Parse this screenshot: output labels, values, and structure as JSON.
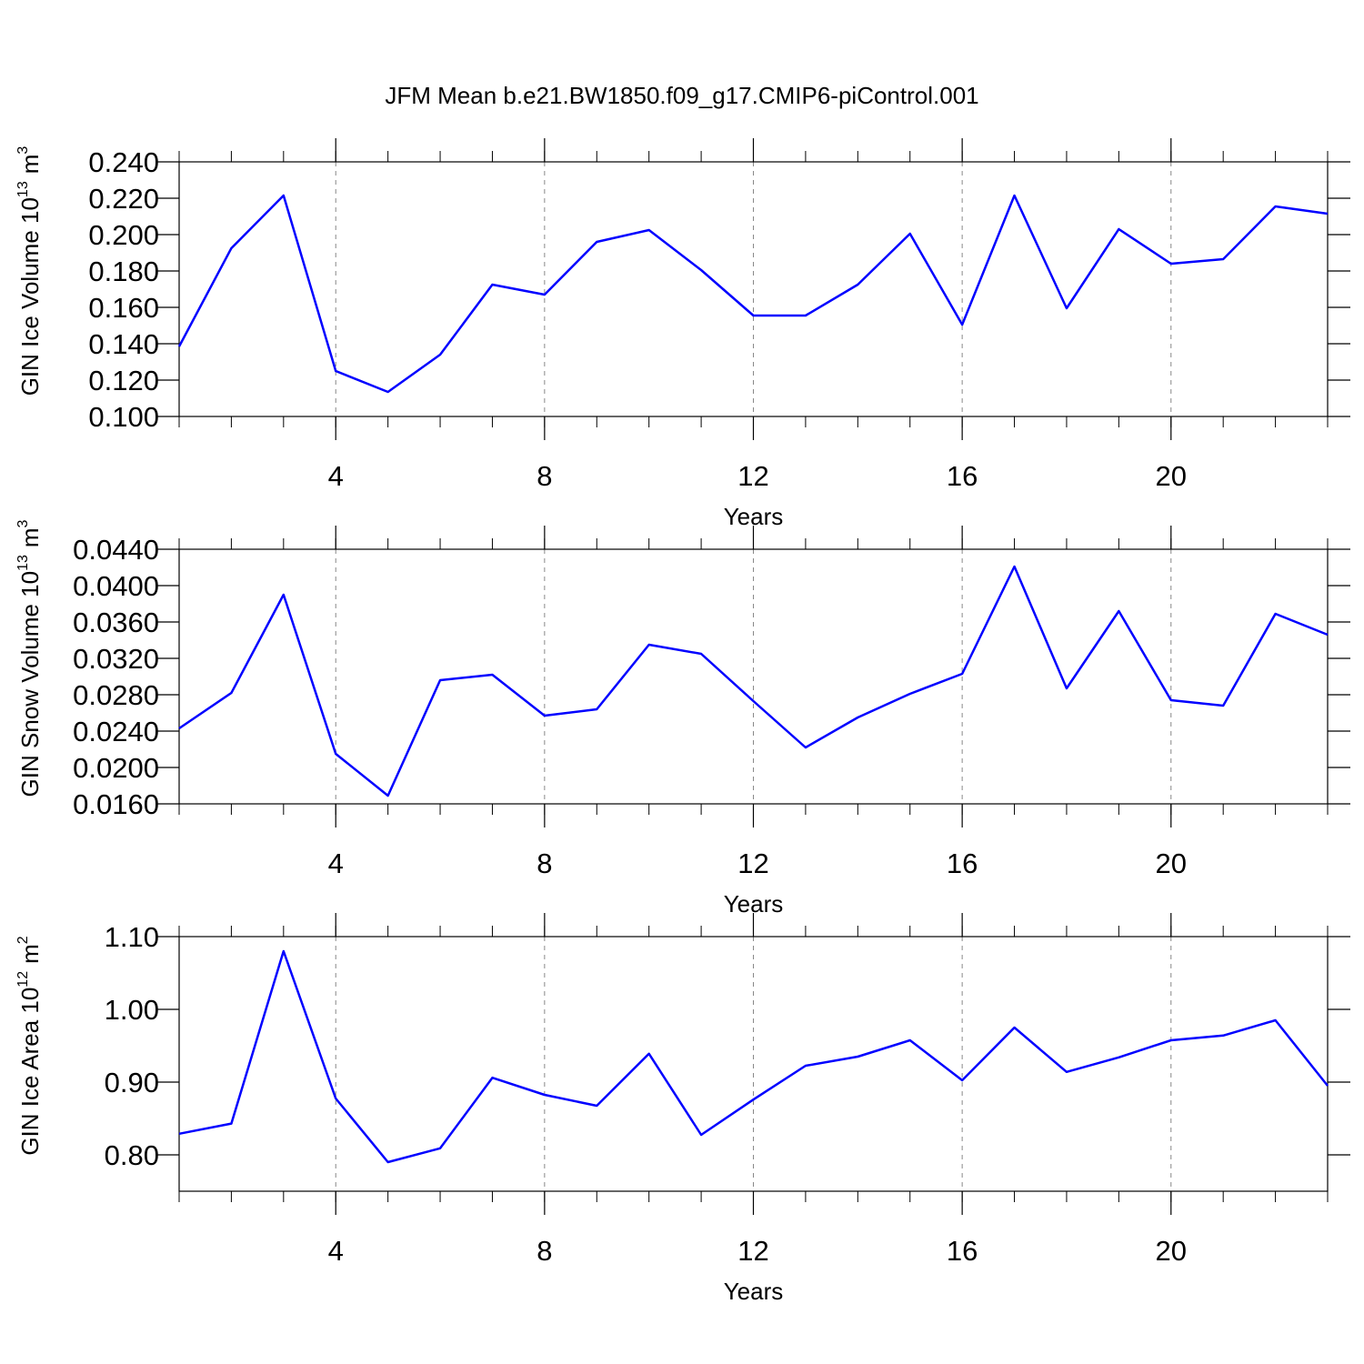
{
  "title": "JFM Mean b.e21.BW1850.f09_g17.CMIP6-piControl.001",
  "chart_data": [
    {
      "type": "line",
      "xlabel": "Years",
      "ylabel": {
        "text": "GIN Ice Volume 10",
        "power": "13",
        "unit": "m",
        "unit_power": "3"
      },
      "x": [
        1,
        2,
        3,
        4,
        5,
        6,
        7,
        8,
        9,
        10,
        11,
        12,
        13,
        14,
        15,
        16,
        17,
        18,
        19,
        20,
        21,
        22,
        23
      ],
      "series": [
        {
          "color": "#0000ff",
          "values": [
            0.1385,
            0.1925,
            0.2215,
            0.125,
            0.1135,
            0.134,
            0.1725,
            0.167,
            0.196,
            0.2025,
            0.1805,
            0.1555,
            0.1555,
            0.1725,
            0.2005,
            0.1505,
            0.2215,
            0.1595,
            0.203,
            0.184,
            0.1865,
            0.2155,
            0.2115
          ]
        }
      ],
      "xlim": [
        1,
        23
      ],
      "xticks": [
        4,
        8,
        12,
        16,
        20
      ],
      "ylim": [
        0.1,
        0.24
      ],
      "yticks": [
        {
          "value": 0.1,
          "label": "0.100"
        },
        {
          "value": 0.12,
          "label": "0.120"
        },
        {
          "value": 0.14,
          "label": "0.140"
        },
        {
          "value": 0.16,
          "label": "0.160"
        },
        {
          "value": 0.18,
          "label": "0.180"
        },
        {
          "value": 0.2,
          "label": "0.200"
        },
        {
          "value": 0.22,
          "label": "0.220"
        },
        {
          "value": 0.24,
          "label": "0.240"
        }
      ],
      "grid": true
    },
    {
      "type": "line",
      "xlabel": "Years",
      "ylabel": {
        "text": "GIN Snow Volume 10",
        "power": "13",
        "unit": "m",
        "unit_power": "3"
      },
      "x": [
        1,
        2,
        3,
        4,
        5,
        6,
        7,
        8,
        9,
        10,
        11,
        12,
        13,
        14,
        15,
        16,
        17,
        18,
        19,
        20,
        21,
        22,
        23
      ],
      "series": [
        {
          "color": "#0000ff",
          "values": [
            0.0243,
            0.0282,
            0.039,
            0.0215,
            0.0169,
            0.0296,
            0.0302,
            0.0257,
            0.0264,
            0.0335,
            0.0325,
            0.0273,
            0.0222,
            0.0255,
            0.0281,
            0.0303,
            0.0421,
            0.0287,
            0.0372,
            0.0274,
            0.0268,
            0.0369,
            0.0346
          ]
        }
      ],
      "xlim": [
        1,
        23
      ],
      "xticks": [
        4,
        8,
        12,
        16,
        20
      ],
      "ylim": [
        0.016,
        0.044
      ],
      "yticks": [
        {
          "value": 0.016,
          "label": "0.0160"
        },
        {
          "value": 0.02,
          "label": "0.0200"
        },
        {
          "value": 0.024,
          "label": "0.0240"
        },
        {
          "value": 0.028,
          "label": "0.0280"
        },
        {
          "value": 0.032,
          "label": "0.0320"
        },
        {
          "value": 0.036,
          "label": "0.0360"
        },
        {
          "value": 0.04,
          "label": "0.0400"
        },
        {
          "value": 0.044,
          "label": "0.0440"
        }
      ],
      "grid": true
    },
    {
      "type": "line",
      "xlabel": "Years",
      "ylabel": {
        "text": "GIN Ice Area 10",
        "power": "12",
        "unit": "m",
        "unit_power": "2"
      },
      "x": [
        1,
        2,
        3,
        4,
        5,
        6,
        7,
        8,
        9,
        10,
        11,
        12,
        13,
        14,
        15,
        16,
        17,
        18,
        19,
        20,
        21,
        22,
        23
      ],
      "series": [
        {
          "color": "#0000ff",
          "values": [
            0.829,
            0.843,
            1.08,
            0.8775,
            0.79,
            0.809,
            0.906,
            0.8825,
            0.8675,
            0.939,
            0.8275,
            0.876,
            0.9225,
            0.935,
            0.9575,
            0.9025,
            0.975,
            0.914,
            0.934,
            0.9575,
            0.964,
            0.985,
            0.895
          ]
        }
      ],
      "xlim": [
        1,
        23
      ],
      "xticks": [
        4,
        8,
        12,
        16,
        20
      ],
      "ylim": [
        0.75,
        1.1
      ],
      "yticks": [
        {
          "value": 0.8,
          "label": "0.80"
        },
        {
          "value": 0.9,
          "label": "0.90"
        },
        {
          "value": 1.0,
          "label": "1.00"
        },
        {
          "value": 1.1,
          "label": "1.10"
        }
      ],
      "grid": true
    }
  ]
}
